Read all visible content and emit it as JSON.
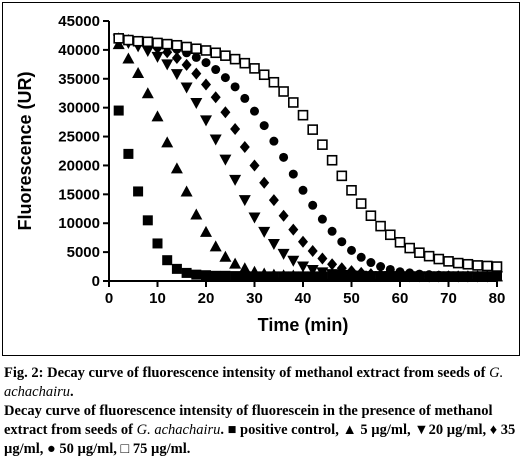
{
  "chart_data": {
    "type": "scatter",
    "title": "",
    "xlabel": "Time (min)",
    "ylabel": "Fluorescence (UR)",
    "xlim": [
      0,
      80
    ],
    "ylim": [
      0,
      45000
    ],
    "xticks": [
      0,
      10,
      20,
      30,
      40,
      50,
      60,
      70,
      80
    ],
    "yticks": [
      0,
      5000,
      10000,
      15000,
      20000,
      25000,
      30000,
      35000,
      40000,
      45000
    ],
    "grid": false,
    "x": [
      2,
      4,
      6,
      8,
      10,
      12,
      14,
      16,
      18,
      20,
      22,
      24,
      26,
      28,
      30,
      32,
      34,
      36,
      38,
      40,
      42,
      44,
      46,
      48,
      50,
      52,
      54,
      56,
      58,
      60,
      62,
      64,
      66,
      68,
      70,
      72,
      74,
      76,
      78,
      80
    ],
    "series": [
      {
        "name": "positive control",
        "marker": "square",
        "values": [
          29500,
          22000,
          15500,
          10500,
          6500,
          3600,
          2100,
          1400,
          1100,
          1000,
          900,
          900,
          850,
          850,
          800,
          800,
          800,
          800,
          800,
          800,
          800,
          800,
          800,
          800,
          800,
          800,
          800,
          800,
          800,
          800,
          800,
          800,
          800,
          800,
          800,
          800,
          800,
          800,
          800,
          800
        ]
      },
      {
        "name": "5 µg/ml",
        "marker": "triangle-up",
        "values": [
          41000,
          38500,
          36000,
          32500,
          28500,
          24000,
          19500,
          15500,
          11500,
          8500,
          6000,
          4200,
          3000,
          2200,
          1600,
          1300,
          1100,
          1000,
          950,
          900,
          900,
          850,
          850,
          850,
          850,
          800,
          800,
          800,
          800,
          800,
          800,
          800,
          800,
          800,
          800,
          800,
          800,
          800,
          800,
          800
        ]
      },
      {
        "name": "20 µg/ml",
        "marker": "triangle-down",
        "values": [
          41800,
          41200,
          40600,
          39800,
          38800,
          37500,
          35800,
          33500,
          30800,
          27800,
          24500,
          21000,
          17500,
          14000,
          11000,
          8500,
          6400,
          4700,
          3500,
          2500,
          1900,
          1500,
          1200,
          1050,
          950,
          900,
          850,
          850,
          850,
          800,
          800,
          800,
          800,
          800,
          800,
          800,
          800,
          800,
          800,
          800
        ]
      },
      {
        "name": "35 µg/ml",
        "marker": "diamond",
        "values": [
          42000,
          41700,
          41300,
          40900,
          40300,
          39600,
          38600,
          37400,
          35900,
          34000,
          31800,
          29200,
          26300,
          23200,
          20000,
          17000,
          14000,
          11300,
          8900,
          6800,
          5200,
          3900,
          2900,
          2200,
          1700,
          1400,
          1200,
          1050,
          950,
          900,
          850,
          850,
          800,
          800,
          800,
          800,
          800,
          800,
          800,
          800
        ]
      },
      {
        "name": "50 µg/ml",
        "marker": "circle",
        "values": [
          42000,
          41800,
          41600,
          41300,
          41000,
          40600,
          40100,
          39500,
          38700,
          37800,
          36600,
          35200,
          33600,
          31600,
          29400,
          26900,
          24200,
          21400,
          18500,
          15700,
          13100,
          10700,
          8600,
          6800,
          5300,
          4100,
          3200,
          2500,
          2000,
          1600,
          1400,
          1200,
          1100,
          1000,
          950,
          900,
          900,
          850,
          850,
          850
        ]
      },
      {
        "name": "75 µg/ml",
        "marker": "open-square",
        "values": [
          42000,
          41700,
          41500,
          41400,
          41200,
          41000,
          40800,
          40500,
          40200,
          39900,
          39500,
          39000,
          38400,
          37700,
          36800,
          35700,
          34400,
          32800,
          30900,
          28700,
          26200,
          23600,
          20900,
          18200,
          15700,
          13400,
          11300,
          9500,
          8000,
          6700,
          5700,
          4900,
          4300,
          3800,
          3400,
          3100,
          2900,
          2700,
          2600,
          2500
        ]
      }
    ]
  },
  "caption": {
    "fig_label": "Fig. 2: ",
    "title_text": "Decay curve of fluorescence intensity of methanol extract from seeds of ",
    "species": "G. achachairu",
    "title_end": ".",
    "desc_text": "Decay curve of fluorescence intensity of fluorescein in the presence of methanol extract from seeds of ",
    "desc_species": "G. achachairu",
    "legend_text": ". ■ positive control, ▲ 5 µg/ml, ▼20 µg/ml, ♦ 35 µg/ml, ● 50 µg/ml, □ 75 µg/ml."
  }
}
